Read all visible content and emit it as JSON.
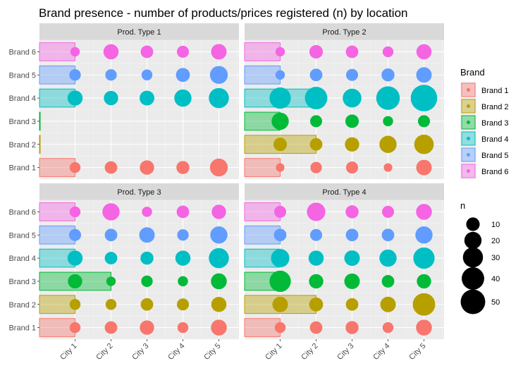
{
  "chart_data": {
    "type": "scatter",
    "title": "Brand presence - number of products/prices registered (n) by location",
    "xlabel": "",
    "ylabel": "",
    "categories_x": [
      "City 1",
      "City 2",
      "City 3",
      "City 4",
      "City 5"
    ],
    "categories_y": [
      "Brand 1",
      "Brand 2",
      "Brand 3",
      "Brand 4",
      "Brand 5",
      "Brand 6"
    ],
    "grid": true,
    "legend_position": "right",
    "legend": {
      "color_title": "Brand",
      "size_title": "n",
      "size_breaks": [
        10,
        20,
        30,
        40,
        50
      ]
    },
    "brand_colors": {
      "Brand 1": "#F8766D",
      "Brand 2": "#B79F00",
      "Brand 3": "#00BA38",
      "Brand 4": "#00BFC4",
      "Brand 5": "#619CFF",
      "Brand 6": "#F564E3"
    },
    "panels": [
      {
        "title": "Prod. Type 1",
        "bar_cities": {
          "Brand 1": 1,
          "Brand 2": 0,
          "Brand 3": 0,
          "Brand 4": 1,
          "Brand 5": 1,
          "Brand 6": 1
        },
        "n": {
          "Brand 1": [
            5,
            8,
            12,
            9,
            22
          ],
          "Brand 2": [
            0,
            0,
            0,
            0,
            0
          ],
          "Brand 3": [
            0,
            0,
            0,
            0,
            0
          ],
          "Brand 4": [
            14,
            12,
            13,
            20,
            30
          ],
          "Brand 5": [
            6,
            6,
            5,
            11,
            22
          ],
          "Brand 6": [
            3,
            14,
            8,
            7,
            15
          ]
        }
      },
      {
        "title": "Prod. Type 2",
        "bar_cities": {
          "Brand 1": 1,
          "Brand 2": 2,
          "Brand 3": 1,
          "Brand 4": 2,
          "Brand 5": 1,
          "Brand 6": 1
        },
        "n": {
          "Brand 1": [
            2,
            6,
            7,
            2,
            15
          ],
          "Brand 2": [
            10,
            8,
            12,
            20,
            28
          ],
          "Brand 3": [
            20,
            7,
            10,
            4,
            7
          ],
          "Brand 4": [
            35,
            40,
            25,
            45,
            60
          ],
          "Brand 5": [
            3,
            8,
            7,
            9,
            15
          ],
          "Brand 6": [
            3,
            10,
            8,
            5,
            14
          ]
        }
      },
      {
        "title": "Prod. Type 3",
        "bar_cities": {
          "Brand 1": 1,
          "Brand 2": 1,
          "Brand 3": 2,
          "Brand 4": 1,
          "Brand 5": 1,
          "Brand 6": 1
        },
        "n": {
          "Brand 1": [
            5,
            8,
            12,
            5,
            16
          ],
          "Brand 2": [
            5,
            5,
            8,
            7,
            14
          ],
          "Brand 3": [
            12,
            3,
            6,
            4,
            16
          ],
          "Brand 4": [
            14,
            8,
            9,
            14,
            30
          ],
          "Brand 5": [
            7,
            8,
            15,
            6,
            20
          ],
          "Brand 6": [
            5,
            20,
            4,
            8,
            12
          ]
        }
      },
      {
        "title": "Prod. Type 4",
        "bar_cities": {
          "Brand 1": 1,
          "Brand 2": 2,
          "Brand 3": 1,
          "Brand 4": 1,
          "Brand 5": 1,
          "Brand 6": 1
        },
        "n": {
          "Brand 1": [
            5,
            8,
            9,
            5,
            16
          ],
          "Brand 2": [
            15,
            11,
            8,
            15,
            40
          ],
          "Brand 3": [
            35,
            12,
            15,
            8,
            12
          ],
          "Brand 4": [
            24,
            14,
            15,
            20,
            35
          ],
          "Brand 5": [
            8,
            7,
            8,
            8,
            20
          ],
          "Brand 6": [
            7,
            24,
            9,
            7,
            16
          ]
        }
      }
    ]
  }
}
